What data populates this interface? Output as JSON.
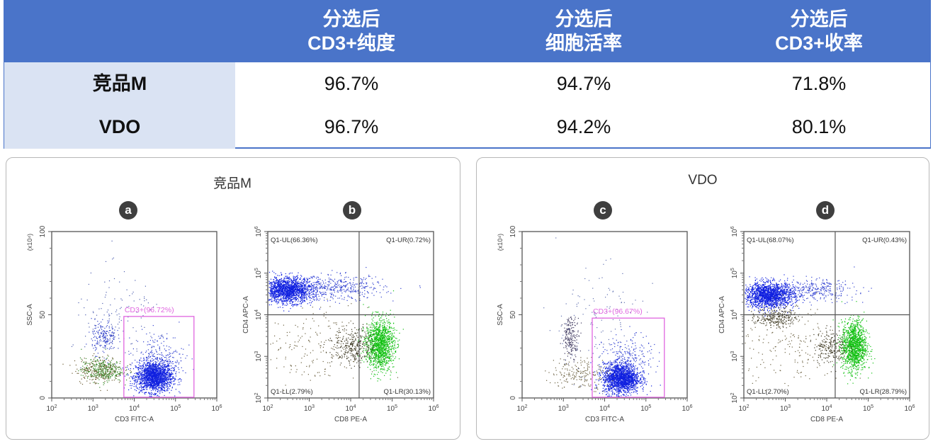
{
  "table": {
    "headers": [
      {
        "line1": "分选后",
        "line2": "CD3+纯度"
      },
      {
        "line1": "分选后",
        "line2": "细胞活率"
      },
      {
        "line1": "分选后",
        "line2": "CD3+收率"
      }
    ],
    "rows": [
      {
        "label": "竞品M",
        "values": [
          "96.7%",
          "94.7%",
          "71.8%"
        ]
      },
      {
        "label": "VDO",
        "values": [
          "96.7%",
          "94.2%",
          "80.1%"
        ]
      }
    ],
    "colors": {
      "header_bg": "#4a74c9",
      "label_bg": "#dae3f3"
    }
  },
  "panels": [
    {
      "title": "竞品M",
      "badges": [
        "a",
        "b"
      ]
    },
    {
      "title": "VDO",
      "badges": [
        "c",
        "d"
      ]
    }
  ],
  "chart_data": [
    {
      "id": "a",
      "type": "scatter",
      "xlabel": "CD3 FITC-A",
      "ylabel": "SSC-A",
      "yunit": "(x10⁴)",
      "xscale": "log",
      "xlim": [
        100,
        1000000
      ],
      "xticks": [
        "2",
        "3",
        "4",
        "5",
        "6"
      ],
      "yscale": "linear",
      "ylim": [
        0,
        100
      ],
      "yticks": [
        "0",
        "50",
        "100"
      ],
      "gate": {
        "label": "CD3+(96.72%)",
        "x": [
          5600,
          280000
        ],
        "y": [
          0,
          49
        ],
        "color": "#e066e0"
      },
      "populations": [
        {
          "x": 30000,
          "y": 13,
          "spread": [
            0.22,
            4.5
          ],
          "count": 1800,
          "color": "#1020e0"
        },
        {
          "x": 40000,
          "y": 24,
          "spread": [
            0.3,
            8
          ],
          "count": 250,
          "color": "#3040d0"
        },
        {
          "x": 1600,
          "y": 17,
          "spread": [
            0.25,
            3.5
          ],
          "count": 350,
          "color": "#3a8a2a"
        },
        {
          "x": 1400,
          "y": 17,
          "spread": [
            0.3,
            4
          ],
          "count": 200,
          "color": "#6b5a30"
        },
        {
          "x": 1800,
          "y": 37,
          "spread": [
            0.15,
            5
          ],
          "count": 200,
          "color": "#3040c8"
        },
        {
          "x": 5000,
          "y": 45,
          "spread": [
            0.6,
            15
          ],
          "count": 120,
          "color": "#5060b0"
        }
      ]
    },
    {
      "id": "b",
      "type": "scatter",
      "xlabel": "CD8 PE-A",
      "ylabel": "CD4 APC-A",
      "xscale": "log",
      "xlim": [
        100,
        1000000
      ],
      "xticks": [
        "2",
        "3",
        "4",
        "5",
        "6"
      ],
      "yscale": "log",
      "ylim": [
        100,
        1000000
      ],
      "yticks": [
        "2",
        "3",
        "4",
        "5",
        "6"
      ],
      "quadrants": {
        "x": 16000,
        "y": 10000,
        "labels": [
          "Q1-UL(66.36%)",
          "Q1-UR(0.72%)",
          "Q1-LL(2.79%)",
          "Q1-LR(30.13%)"
        ]
      },
      "populations": [
        {
          "x": 300,
          "y": 40000,
          "spread": [
            0.3,
            0.15
          ],
          "count": 1700,
          "color": "#1020e0"
        },
        {
          "x": 5000,
          "y": 45000,
          "spread": [
            0.55,
            0.15
          ],
          "count": 400,
          "color": "#3040d0"
        },
        {
          "x": 50000,
          "y": 2000,
          "spread": [
            0.17,
            0.3
          ],
          "count": 1300,
          "color": "#10c010"
        },
        {
          "x": 12000,
          "y": 1800,
          "spread": [
            0.25,
            0.22
          ],
          "count": 300,
          "color": "#3a3520"
        },
        {
          "x": 1000,
          "y": 1500,
          "spread": [
            0.7,
            0.5
          ],
          "count": 200,
          "color": "#6b6040"
        }
      ]
    },
    {
      "id": "c",
      "type": "scatter",
      "xlabel": "CD3 FITC-A",
      "ylabel": "SSC-A",
      "yunit": "(x10⁴)",
      "xscale": "log",
      "xlim": [
        100,
        1000000
      ],
      "xticks": [
        "2",
        "3",
        "4",
        "5",
        "6"
      ],
      "yscale": "linear",
      "ylim": [
        0,
        100
      ],
      "yticks": [
        "0",
        "50",
        "100"
      ],
      "gate": {
        "label": "CD3+(96.67%)",
        "x": [
          5000,
          280000
        ],
        "y": [
          0,
          48
        ],
        "color": "#e066e0"
      },
      "populations": [
        {
          "x": 25000,
          "y": 12,
          "spread": [
            0.22,
            4.5
          ],
          "count": 1800,
          "color": "#1020e0"
        },
        {
          "x": 35000,
          "y": 24,
          "spread": [
            0.3,
            7
          ],
          "count": 220,
          "color": "#3040d0"
        },
        {
          "x": 1500,
          "y": 37,
          "spread": [
            0.1,
            6
          ],
          "count": 200,
          "color": "#403a60"
        },
        {
          "x": 2500,
          "y": 15,
          "spread": [
            0.35,
            5
          ],
          "count": 200,
          "color": "#6b6040"
        },
        {
          "x": 5000,
          "y": 45,
          "spread": [
            0.6,
            18
          ],
          "count": 120,
          "color": "#6070b0"
        }
      ]
    },
    {
      "id": "d",
      "type": "scatter",
      "xlabel": "CD8 PE-A",
      "ylabel": "CD4 APC-A",
      "xscale": "log",
      "xlim": [
        100,
        1000000
      ],
      "xticks": [
        "2",
        "3",
        "4",
        "5",
        "6"
      ],
      "yscale": "log",
      "ylim": [
        100,
        1000000
      ],
      "yticks": [
        "2",
        "3",
        "4",
        "5",
        "6"
      ],
      "quadrants": {
        "x": 16000,
        "y": 10000,
        "labels": [
          "Q1-UL(68.07%)",
          "Q1-UR(0.43%)",
          "Q1-LL(2.70%)",
          "Q1-LR(28.79%)"
        ]
      },
      "populations": [
        {
          "x": 400,
          "y": 30000,
          "spread": [
            0.3,
            0.15
          ],
          "count": 1700,
          "color": "#1020e0"
        },
        {
          "x": 5000,
          "y": 40000,
          "spread": [
            0.5,
            0.13
          ],
          "count": 300,
          "color": "#3040d0"
        },
        {
          "x": 600,
          "y": 9000,
          "spread": [
            0.25,
            0.12
          ],
          "count": 250,
          "color": "#3a3520"
        },
        {
          "x": 45000,
          "y": 1800,
          "spread": [
            0.15,
            0.3
          ],
          "count": 1300,
          "color": "#10c010"
        },
        {
          "x": 12000,
          "y": 1800,
          "spread": [
            0.2,
            0.2
          ],
          "count": 200,
          "color": "#3a3520"
        },
        {
          "x": 1500,
          "y": 1500,
          "spread": [
            0.7,
            0.5
          ],
          "count": 200,
          "color": "#6b6040"
        }
      ]
    }
  ]
}
